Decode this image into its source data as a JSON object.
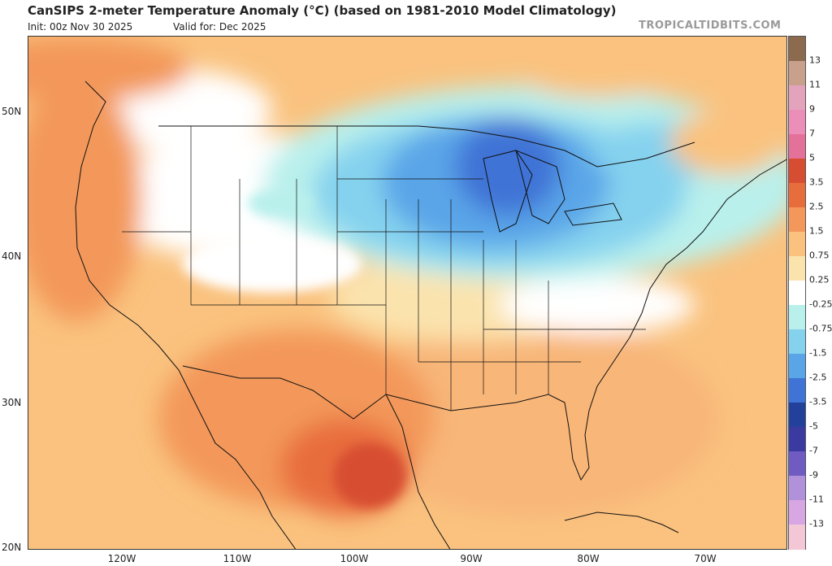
{
  "header": {
    "title": "CanSIPS 2-meter Temperature Anomaly (°C) (based on 1981-2010 Model Climatology)",
    "init": "Init: 00z Nov 30 2025",
    "valid": "Valid for: Dec 2025",
    "brand": "TROPICALTIDBITS.COM"
  },
  "axes": {
    "lat_labels": [
      "50N",
      "40N",
      "30N",
      "20N"
    ],
    "lon_labels": [
      "120W",
      "110W",
      "100W",
      "90W",
      "80W",
      "70W"
    ]
  },
  "colorbar": {
    "labels": [
      "13",
      "11",
      "9",
      "7",
      "5",
      "3.5",
      "2.5",
      "1.5",
      "0.75",
      "0.25",
      "-0.25",
      "-0.75",
      "-1.5",
      "-2.5",
      "-3.5",
      "-5",
      "-7",
      "-9",
      "-11",
      "-13"
    ],
    "colors": [
      "#8b6a4e",
      "#c8a08c",
      "#e3a3bd",
      "#eb8fb8",
      "#e3719a",
      "#d74d32",
      "#e86d3c",
      "#f3985a",
      "#fac27e",
      "#fbe3ad",
      "#ffffff",
      "#b9f0ec",
      "#85d2ee",
      "#5aa5e8",
      "#3f73d6",
      "#23419b",
      "#3a3aa0",
      "#6f5bc1",
      "#b291db",
      "#d8a6e3",
      "#f4c7d6"
    ]
  },
  "colors": {
    "warm_light": "#fbe3ad",
    "warm": "#fac27e",
    "warm_mid": "#f3985a",
    "warm_strong": "#e86d3c",
    "warm_max": "#d74d32",
    "neutral": "#ffffff",
    "cool_light": "#b9f0ec",
    "cool": "#85d2ee",
    "cool_mid": "#5aa5e8",
    "cool_strong": "#3f73d6",
    "cool_max": "#2e5cc0"
  }
}
